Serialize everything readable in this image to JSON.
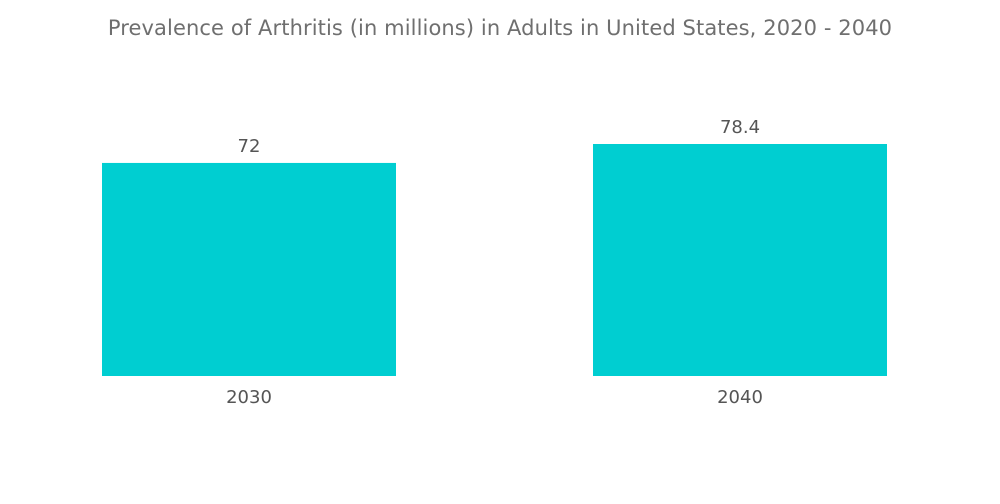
{
  "chart_data": {
    "type": "bar",
    "title": "Prevalence of Arthritis (in millions) in Adults in United States, 2020 - 2040",
    "xlabel": "",
    "ylabel": "",
    "categories": [
      "2030",
      "2040"
    ],
    "values": [
      72,
      78.4
    ],
    "value_labels": [
      "72",
      "78.4"
    ],
    "ylim": [
      0,
      78.4
    ],
    "grid": false,
    "legend": "none",
    "bar_color": "#00ced1"
  }
}
